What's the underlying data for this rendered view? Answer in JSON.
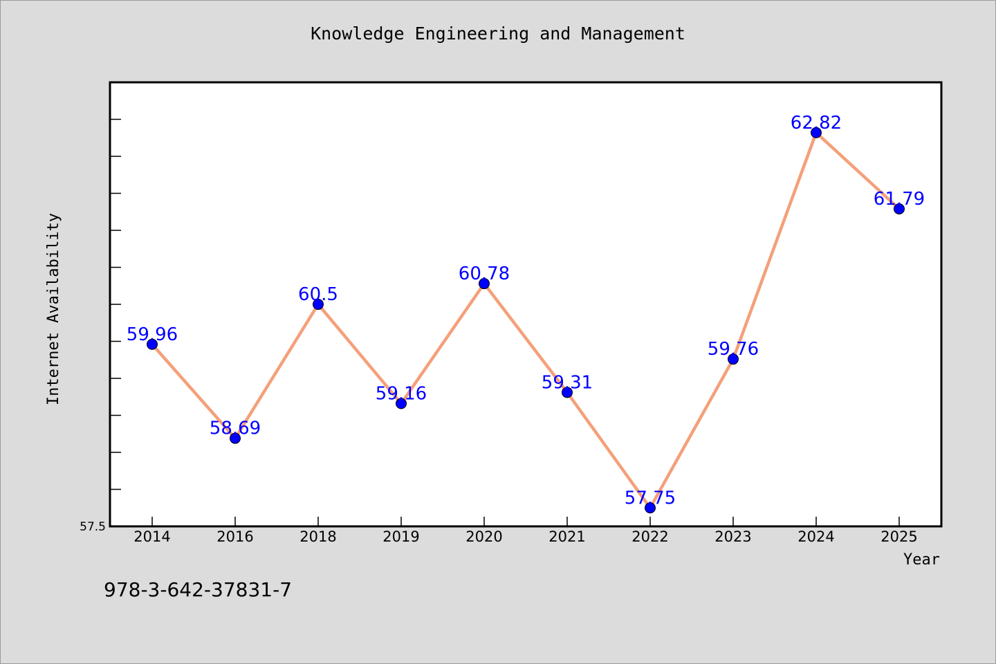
{
  "chart_data": {
    "type": "line",
    "title": "Knowledge Engineering and Management",
    "xlabel": "Year",
    "ylabel": "Internet Availability",
    "categories": [
      "2014",
      "2016",
      "2018",
      "2019",
      "2020",
      "2021",
      "2022",
      "2023",
      "2024",
      "2025"
    ],
    "series": [
      {
        "values": [
          59.96,
          58.69,
          60.5,
          59.16,
          60.78,
          59.31,
          57.75,
          59.76,
          62.82,
          61.79
        ],
        "labels": [
          "59.96",
          "58.69",
          "60.5",
          "59.16",
          "60.78",
          "59.31",
          "57.75",
          "59.76",
          "62.82",
          "61.79"
        ],
        "line_color": "#f4a07a",
        "marker_color": "#0000ff"
      }
    ],
    "y_tick_labels": [
      "57.5"
    ],
    "ylim": [
      57.5,
      63.5
    ],
    "grid": false,
    "data_label_color": "#0000ff"
  },
  "footer": {
    "code": "978-3-642-37831-7"
  }
}
